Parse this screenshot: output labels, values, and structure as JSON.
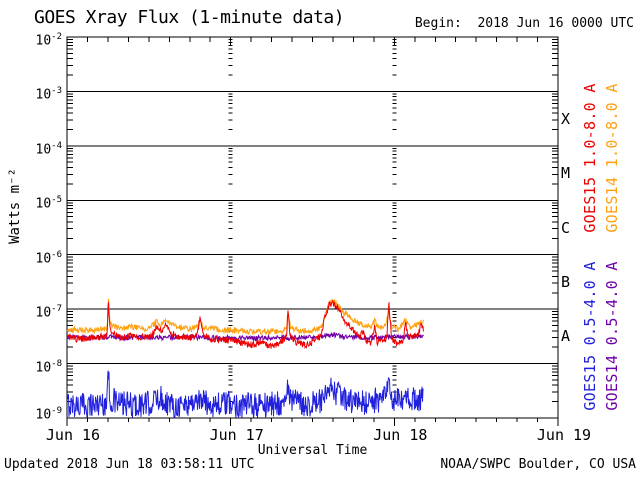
{
  "header": {
    "begin": "Begin:  2018 Jun 16 0000 UTC"
  },
  "footer": {
    "updated": "Updated 2018 Jun 18 03:58:11 UTC",
    "credit": "NOAA/SWPC Boulder, CO USA"
  },
  "chart_data": {
    "type": "line",
    "title": "GOES Xray Flux (1-minute data)",
    "x_title": "Universal Time",
    "y_title": "Watts m⁻²",
    "y_axis": {
      "scale": "log",
      "exponent_top": -2,
      "exponent_bottom": -9,
      "unit": "Watts m^-2",
      "grid": "solid-horizontal-per-decade"
    },
    "x_axis": {
      "day_labels": [
        "Jun 16",
        "Jun 17",
        "Jun 18",
        "Jun 19"
      ],
      "span_days": 3,
      "minor_tick_hours": 3,
      "grid_day_lines": [
        1,
        2
      ],
      "grid_style": "log-dotted-vertical"
    },
    "flare_classes": [
      {
        "label": "X",
        "decade_floor_exponent": -4
      },
      {
        "label": "M",
        "decade_floor_exponent": -5
      },
      {
        "label": "C",
        "decade_floor_exponent": -6
      },
      {
        "label": "B",
        "decade_floor_exponent": -7
      },
      {
        "label": "A",
        "decade_floor_exponent": -8
      }
    ],
    "legend": [
      {
        "text": "GOES15 1.0-8.0 A",
        "color": "#ee0000"
      },
      {
        "text": "GOES14 1.0-8.0 A",
        "color": "#ffa010"
      },
      {
        "text": "GOES15 0.5-4.0 A",
        "color": "#2020dd"
      },
      {
        "text": "GOES14 0.5-4.0 A",
        "color": "#7000a8"
      }
    ],
    "data_end_hour": 52.3,
    "series": [
      {
        "name": "GOES15 0.5-4.0 A",
        "satellite": "GOES15",
        "band_angstrom": "0.5-4.0",
        "color": "#2020dd",
        "noise_log": 0.24,
        "points": [
          [
            0,
            1.8e-09
          ],
          [
            2,
            1.7e-09
          ],
          [
            4,
            1.8e-09
          ],
          [
            5.9,
            1.9e-09
          ],
          [
            6.05,
            1.05e-08
          ],
          [
            6.25,
            2.2e-09
          ],
          [
            8,
            1.8e-09
          ],
          [
            10,
            1.7e-09
          ],
          [
            12,
            1.8e-09
          ],
          [
            13.6,
            2.4e-09
          ],
          [
            15,
            1.8e-09
          ],
          [
            17,
            1.7e-09
          ],
          [
            19.5,
            2.2e-09
          ],
          [
            21,
            1.8e-09
          ],
          [
            24,
            1.8e-09
          ],
          [
            27,
            1.7e-09
          ],
          [
            30,
            1.8e-09
          ],
          [
            32.2,
            2e-09
          ],
          [
            32.4,
            4.5e-09
          ],
          [
            32.8,
            2e-09
          ],
          [
            35,
            1.8e-09
          ],
          [
            37.5,
            2e-09
          ],
          [
            38.8,
            3.3e-09
          ],
          [
            40,
            2.6e-09
          ],
          [
            41.5,
            2e-09
          ],
          [
            43,
            1.9e-09
          ],
          [
            45,
            2.1e-09
          ],
          [
            46.5,
            2.2e-09
          ],
          [
            47.2,
            4.2e-09
          ],
          [
            47.6,
            2.1e-09
          ],
          [
            49,
            2e-09
          ],
          [
            50.5,
            2.2e-09
          ],
          [
            52,
            2.3e-09
          ],
          [
            52.3,
            2.2e-09
          ]
        ]
      },
      {
        "name": "GOES14 0.5-4.0 A",
        "satellite": "GOES14",
        "band_angstrom": "0.5-4.0",
        "color": "#7000a8",
        "noise_log": 0.045,
        "points": [
          [
            0,
            3.1e-08
          ],
          [
            3,
            3e-08
          ],
          [
            6,
            3.1e-08
          ],
          [
            9,
            3e-08
          ],
          [
            12,
            3.05e-08
          ],
          [
            15,
            3e-08
          ],
          [
            18,
            3.05e-08
          ],
          [
            21,
            3e-08
          ],
          [
            24,
            2.95e-08
          ],
          [
            27,
            2.9e-08
          ],
          [
            30,
            2.95e-08
          ],
          [
            33,
            3e-08
          ],
          [
            36,
            3e-08
          ],
          [
            39,
            3.4e-08
          ],
          [
            40.5,
            3.1e-08
          ],
          [
            43,
            3e-08
          ],
          [
            46,
            3.05e-08
          ],
          [
            49,
            3.1e-08
          ],
          [
            52.3,
            3.1e-08
          ]
        ]
      },
      {
        "name": "GOES14 1.0-8.0 A",
        "satellite": "GOES14",
        "band_angstrom": "1.0-8.0",
        "color": "#ffa010",
        "noise_log": 0.055,
        "points": [
          [
            0,
            4.2e-08
          ],
          [
            2,
            4.1e-08
          ],
          [
            4,
            4.2e-08
          ],
          [
            5.9,
            4.4e-08
          ],
          [
            6.05,
            1.65e-07
          ],
          [
            6.3,
            5.5e-08
          ],
          [
            7,
            4.7e-08
          ],
          [
            8.5,
            4.4e-08
          ],
          [
            9.3,
            5e-08
          ],
          [
            10.5,
            4.4e-08
          ],
          [
            12,
            4.4e-08
          ],
          [
            13.1,
            5.8e-08
          ],
          [
            13.8,
            5e-08
          ],
          [
            14.5,
            6.4e-08
          ],
          [
            15.3,
            5.1e-08
          ],
          [
            16.5,
            4.6e-08
          ],
          [
            18,
            4.4e-08
          ],
          [
            19.2,
            4.6e-08
          ],
          [
            19.5,
            6e-08
          ],
          [
            20,
            4.6e-08
          ],
          [
            22,
            4.3e-08
          ],
          [
            24,
            4.1e-08
          ],
          [
            26,
            3.9e-08
          ],
          [
            28,
            3.9e-08
          ],
          [
            30,
            3.85e-08
          ],
          [
            31.5,
            4e-08
          ],
          [
            32.2,
            4.3e-08
          ],
          [
            32.4,
            8.5e-08
          ],
          [
            32.8,
            4.6e-08
          ],
          [
            34,
            4.1e-08
          ],
          [
            35.5,
            3.9e-08
          ],
          [
            36.5,
            4.2e-08
          ],
          [
            37.3,
            4.6e-08
          ],
          [
            37.9,
            8e-08
          ],
          [
            38.5,
            1.3e-07
          ],
          [
            39.1,
            1.4e-07
          ],
          [
            39.7,
            1.2e-07
          ],
          [
            40.5,
            9e-08
          ],
          [
            41.5,
            7e-08
          ],
          [
            42.5,
            5.8e-08
          ],
          [
            43.5,
            5e-08
          ],
          [
            44.5,
            4.6e-08
          ],
          [
            45.1,
            6e-08
          ],
          [
            45.7,
            4.7e-08
          ],
          [
            46.5,
            4.6e-08
          ],
          [
            47.2,
            8.5e-08
          ],
          [
            47.7,
            4.6e-08
          ],
          [
            48.7,
            4.3e-08
          ],
          [
            49.6,
            6.5e-08
          ],
          [
            50.2,
            4.7e-08
          ],
          [
            51,
            5e-08
          ],
          [
            51.8,
            5.8e-08
          ],
          [
            52.3,
            6e-08
          ]
        ]
      },
      {
        "name": "GOES15 1.0-8.0 A",
        "satellite": "GOES15",
        "band_angstrom": "1.0-8.0",
        "color": "#ee0000",
        "noise_log": 0.06,
        "points": [
          [
            0,
            3e-08
          ],
          [
            1,
            2.9e-08
          ],
          [
            2,
            2.8e-08
          ],
          [
            3,
            3e-08
          ],
          [
            4,
            3e-08
          ],
          [
            5,
            3.1e-08
          ],
          [
            5.9,
            3.2e-08
          ],
          [
            6.05,
            1.5e-07
          ],
          [
            6.3,
            4.5e-08
          ],
          [
            6.8,
            3.5e-08
          ],
          [
            7.5,
            3.1e-08
          ],
          [
            9,
            3.1e-08
          ],
          [
            9.3,
            4e-08
          ],
          [
            9.7,
            3.1e-08
          ],
          [
            11,
            3.1e-08
          ],
          [
            12.5,
            3.3e-08
          ],
          [
            13.1,
            4.8e-08
          ],
          [
            13.8,
            3.9e-08
          ],
          [
            14.5,
            5e-08
          ],
          [
            15.3,
            3.6e-08
          ],
          [
            16.5,
            3.1e-08
          ],
          [
            18,
            3e-08
          ],
          [
            19.1,
            3.2e-08
          ],
          [
            19.5,
            7.5e-08
          ],
          [
            20,
            3.3e-08
          ],
          [
            21,
            2.9e-08
          ],
          [
            23,
            2.7e-08
          ],
          [
            24.5,
            2.6e-08
          ],
          [
            26,
            2.3e-08
          ],
          [
            27.5,
            2.2e-08
          ],
          [
            28.6,
            2.6e-08
          ],
          [
            29.5,
            2.1e-08
          ],
          [
            30.5,
            2.2e-08
          ],
          [
            31.5,
            2.6e-08
          ],
          [
            32.2,
            3e-08
          ],
          [
            32.4,
            1e-07
          ],
          [
            32.7,
            3.3e-08
          ],
          [
            33.6,
            2.5e-08
          ],
          [
            34.6,
            2.2e-08
          ],
          [
            35.6,
            2.3e-08
          ],
          [
            36.5,
            2.7e-08
          ],
          [
            37.3,
            3.4e-08
          ],
          [
            37.8,
            7e-08
          ],
          [
            38.4,
            1.2e-07
          ],
          [
            39.0,
            1.3e-07
          ],
          [
            39.6,
            1.1e-07
          ],
          [
            40.3,
            7.5e-08
          ],
          [
            41.2,
            5.2e-08
          ],
          [
            42.2,
            3.8e-08
          ],
          [
            43.0,
            3e-08
          ],
          [
            43.4,
            4e-08
          ],
          [
            43.8,
            2.6e-08
          ],
          [
            44.6,
            2.4e-08
          ],
          [
            45.1,
            5e-08
          ],
          [
            45.5,
            2.5e-08
          ],
          [
            46.3,
            2.7e-08
          ],
          [
            46.9,
            2.9e-08
          ],
          [
            47.2,
            1.3e-07
          ],
          [
            47.6,
            2.8e-08
          ],
          [
            48.5,
            2.3e-08
          ],
          [
            49.3,
            2.5e-08
          ],
          [
            49.6,
            6e-08
          ],
          [
            50,
            3e-08
          ],
          [
            50.8,
            3.1e-08
          ],
          [
            51.5,
            3.4e-08
          ],
          [
            51.9,
            5e-08
          ],
          [
            52.3,
            4.2e-08
          ]
        ]
      }
    ]
  }
}
